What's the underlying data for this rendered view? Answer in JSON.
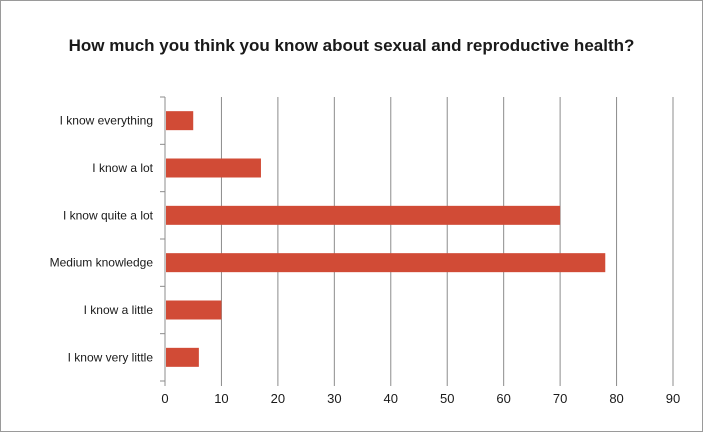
{
  "chart_data": {
    "type": "bar",
    "orientation": "horizontal",
    "title": "How much you think you know about sexual and reproductive health?",
    "categories": [
      "I know everything",
      "I know a lot",
      "I know quite a lot",
      "Medium knowledge",
      "I know a little",
      "I know very little"
    ],
    "values": [
      5,
      17,
      70,
      78,
      10,
      6
    ],
    "xlim": [
      0,
      90
    ],
    "xticks": [
      0,
      10,
      20,
      30,
      40,
      50,
      60,
      70,
      80,
      90
    ],
    "xlabel": "",
    "ylabel": "",
    "grid": true,
    "legend": "none",
    "bar_color": "#d14b36"
  }
}
